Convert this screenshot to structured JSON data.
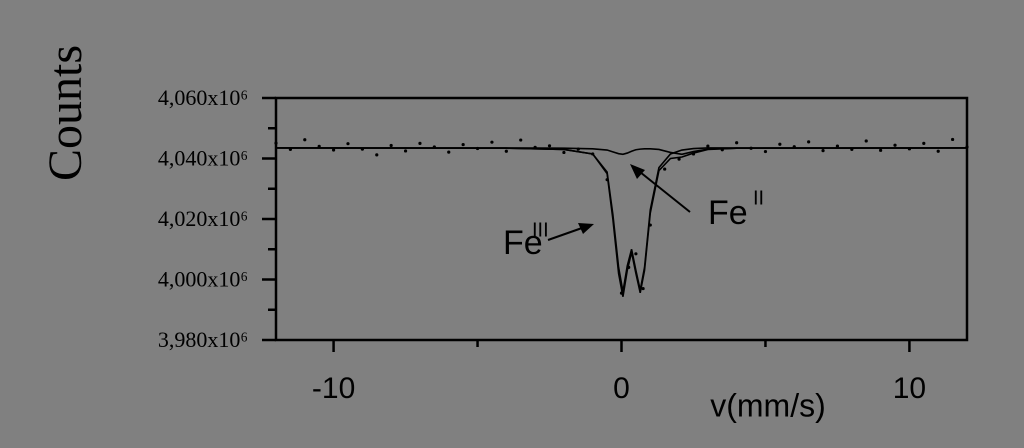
{
  "chart_data": {
    "type": "scatter",
    "xlabel": "v(mm/s)",
    "ylabel": "Counts",
    "xlim": [
      -12,
      12
    ],
    "xticks": [
      -10,
      0,
      10
    ],
    "xminorticks": [
      -5,
      5
    ],
    "ylim": [
      3980000000,
      4060000000
    ],
    "yticks": [
      {
        "value": 3980000000,
        "label": "3,980x10⁶"
      },
      {
        "value": 4000000000,
        "label": "4,000x10⁶"
      },
      {
        "value": 4020000000,
        "label": "4,020x10⁶"
      },
      {
        "value": 4040000000,
        "label": "4,040x10⁶"
      },
      {
        "value": 4060000000,
        "label": "4,060x10⁶"
      }
    ],
    "yminorticks": [
      3990000000,
      4010000000,
      4030000000,
      4050000000
    ],
    "series": [
      {
        "type": "scatter",
        "color": "#000000",
        "x": [
          -12,
          -11.5,
          -11,
          -10.5,
          -10,
          -9.5,
          -9,
          -8.5,
          -8,
          -7.5,
          -7,
          -6.5,
          -6,
          -5.5,
          -5,
          -4.5,
          -4,
          -3.5,
          -3,
          -2.5,
          -2,
          -1.5,
          -1,
          -0.5,
          0,
          0.25,
          0.5,
          0.75,
          1,
          1.5,
          2,
          2.5,
          3,
          3.5,
          4,
          4.5,
          5,
          5.5,
          6,
          6.5,
          7,
          7.5,
          8,
          8.5,
          9,
          9.5,
          10,
          10.5,
          11,
          11.5,
          12
        ],
        "values": [
          4045100000,
          4043000000,
          4046200000,
          4044000000,
          4042800000,
          4044900000,
          4043100000,
          4041200000,
          4044300000,
          4042500000,
          4045000000,
          4043800000,
          4042100000,
          4044600000,
          4043300000,
          4045400000,
          4042400000,
          4046100000,
          4043700000,
          4044200000,
          4042000000,
          4043100000,
          4041500000,
          4033000000,
          3995500000,
          4004000000,
          4008500000,
          3997000000,
          4018000000,
          4036500000,
          4039800000,
          4041500000,
          4044100000,
          4042900000,
          4045200000,
          4043400000,
          4042300000,
          4044700000,
          4043900000,
          4045500000,
          4042600000,
          4044100000,
          4043000000,
          4045800000,
          4042700000,
          4044400000,
          4043200000,
          4045000000,
          4042400000,
          4046300000,
          4043800000
        ]
      },
      {
        "type": "line",
        "color": "#000000",
        "x": [
          -12,
          -4,
          -2,
          -1,
          -0.5,
          -0.3,
          -0.1,
          0.05,
          0.2,
          0.35,
          0.5,
          0.65,
          0.8,
          1.0,
          1.3,
          1.7,
          2.1,
          2.5,
          3,
          4,
          12
        ],
        "values": [
          4043500000,
          4043400000,
          4043000000,
          4041500000,
          4035000000,
          4020000000,
          4002000000,
          3994300000,
          4003000000,
          4009000000,
          4002000000,
          3995600000,
          4003000000,
          4022000000,
          4036000000,
          4040000000,
          4040500000,
          4041800000,
          4043000000,
          4043400000,
          4043500000
        ]
      },
      {
        "type": "line",
        "color": "#000000",
        "x": [
          -12,
          -4,
          -2,
          -1,
          -0.5,
          -0.3,
          -0.1,
          0.05,
          0.2,
          0.35,
          0.5,
          0.65,
          0.8,
          1.0,
          1.3,
          1.7,
          2.1,
          2.5,
          3,
          4,
          12
        ],
        "values": [
          4043500000,
          4043400000,
          4043000000,
          4041500000,
          4035500000,
          4021500000,
          4004000000,
          3996000000,
          4004500000,
          4010000000,
          4003000000,
          3996500000,
          4004000000,
          4023000000,
          4037000000,
          4041500000,
          4042800000,
          4043300000,
          4043500000,
          4043500000,
          4043500000
        ]
      },
      {
        "type": "line",
        "color": "#000000",
        "x": [
          -12,
          -4,
          -2,
          -1,
          -0.5,
          -0.3,
          -0.1,
          0.05,
          0.2,
          0.35,
          0.5,
          0.65,
          0.8,
          1.0,
          1.3,
          1.7,
          2.1,
          2.5,
          3,
          4,
          12
        ],
        "values": [
          4043500000,
          4043500000,
          4043400000,
          4043200000,
          4042800000,
          4042200000,
          4041600000,
          4041400000,
          4041800000,
          4042400000,
          4042900000,
          4043100000,
          4043200000,
          4043200000,
          4043000000,
          4042000000,
          4041400000,
          4042300000,
          4043100000,
          4043400000,
          4043500000
        ]
      }
    ],
    "annotations": [
      {
        "text": "Fe",
        "sup": "III"
      },
      {
        "text": "Fe",
        "sup": "II"
      }
    ]
  }
}
